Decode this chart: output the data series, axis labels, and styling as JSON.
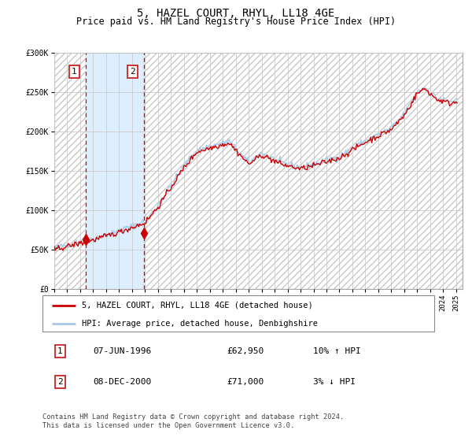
{
  "title": "5, HAZEL COURT, RHYL, LL18 4GE",
  "subtitle": "Price paid vs. HM Land Registry's House Price Index (HPI)",
  "x_start_year": 1994,
  "x_end_year": 2025,
  "ylim": [
    0,
    300000
  ],
  "yticks": [
    0,
    50000,
    100000,
    150000,
    200000,
    250000,
    300000
  ],
  "ytick_labels": [
    "£0",
    "£50K",
    "£100K",
    "£150K",
    "£200K",
    "£250K",
    "£300K"
  ],
  "sale1_date": "07-JUN-1996",
  "sale1_year": 1996.44,
  "sale1_price": 62950,
  "sale1_hpi_pct": "10% ↑ HPI",
  "sale2_date": "08-DEC-2000",
  "sale2_year": 2000.93,
  "sale2_price": 71000,
  "sale2_hpi_pct": "3% ↓ HPI",
  "hpi_line_color": "#a8c8e8",
  "price_line_color": "#cc0000",
  "sale_marker_color": "#cc0000",
  "shaded_region_color": "#ddeeff",
  "legend_label_price": "5, HAZEL COURT, RHYL, LL18 4GE (detached house)",
  "legend_label_hpi": "HPI: Average price, detached house, Denbighshire",
  "footer": "Contains HM Land Registry data © Crown copyright and database right 2024.\nThis data is licensed under the Open Government Licence v3.0.",
  "title_fontsize": 10,
  "subtitle_fontsize": 8.5,
  "tick_fontsize": 7,
  "legend_fontsize": 7.5
}
